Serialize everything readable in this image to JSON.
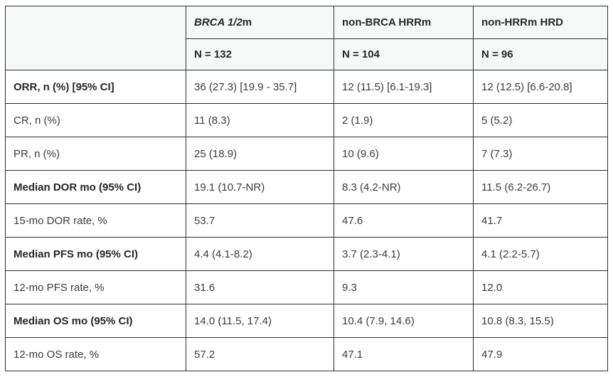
{
  "table": {
    "columns": [
      {
        "label_italic": "BRCA 1/2",
        "label_rest": "m",
        "n": "N = 132"
      },
      {
        "label": "non-BRCA HRRm",
        "n": "N = 104"
      },
      {
        "label": "non-HRRm HRD",
        "n": "N = 96"
      }
    ],
    "rows": [
      {
        "label": "ORR, n (%) [95% CI]",
        "bold": true,
        "values": [
          "36 (27.3) [19.9 - 35.7]",
          "12 (11.5) [6.1-19.3]",
          "12 (12.5) [6.6-20.8]"
        ]
      },
      {
        "label": "CR, n (%)",
        "bold": false,
        "values": [
          "11 (8.3)",
          "2 (1.9)",
          "5 (5.2)"
        ]
      },
      {
        "label": "PR, n (%)",
        "bold": false,
        "values": [
          "25 (18.9)",
          "10 (9.6)",
          "7 (7.3)"
        ]
      },
      {
        "label": "Median DOR mo (95% CI)",
        "bold": true,
        "values": [
          "19.1 (10.7-NR)",
          "8.3 (4.2-NR)",
          "11.5 (6.2-26.7)"
        ]
      },
      {
        "label": "15-mo DOR rate, %",
        "bold": false,
        "values": [
          "53.7",
          "47.6",
          "41.7"
        ]
      },
      {
        "label": "Median PFS mo (95% CI)",
        "bold": true,
        "values": [
          "4.4 (4.1-8.2)",
          "3.7 (2.3-4.1)",
          "4.1 (2.2-5.7)"
        ]
      },
      {
        "label": "12-mo PFS rate, %",
        "bold": false,
        "values": [
          "31.6",
          "9.3",
          "12.0"
        ]
      },
      {
        "label": "Median OS mo (95% CI)",
        "bold": true,
        "values": [
          "14.0 (11.5, 17.4)",
          "10.4 (7.9, 14.6)",
          "10.8 (8.3, 15.5)"
        ]
      },
      {
        "label": "12-mo OS rate, %",
        "bold": false,
        "values": [
          "57.2",
          "47.1",
          "47.9"
        ]
      }
    ],
    "colors": {
      "border": "#2e2e2e",
      "header_bg": "#f7f8f8",
      "body_bg": "#ffffff",
      "text": "#3b3b3b"
    }
  }
}
